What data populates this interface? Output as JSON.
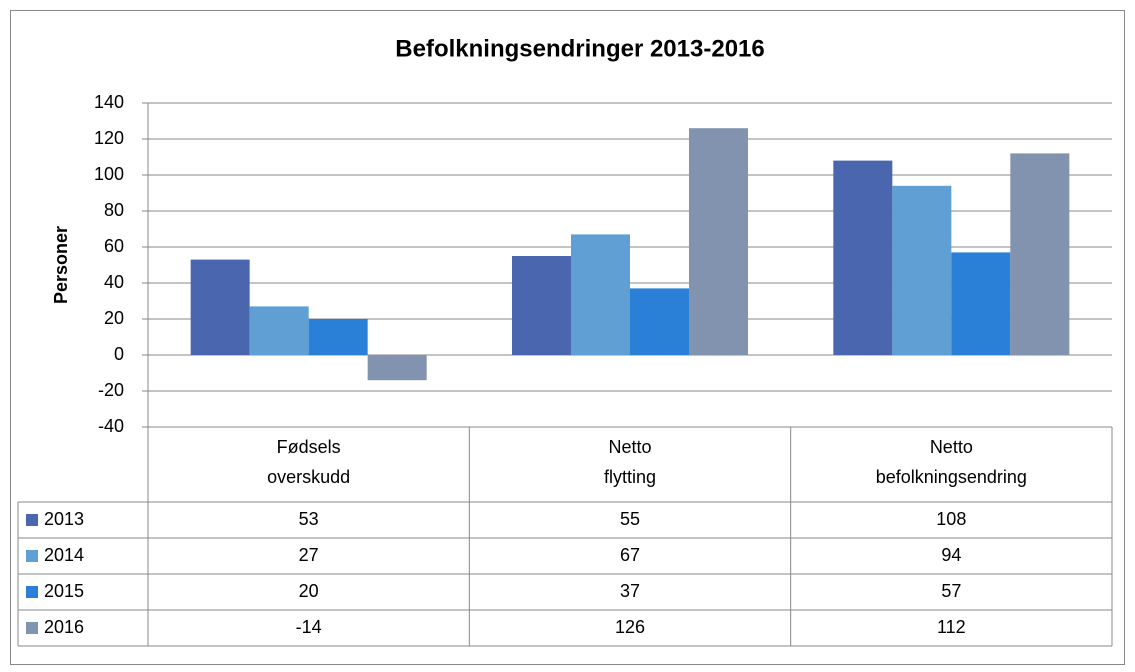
{
  "chart_data": {
    "type": "bar",
    "title": "Befolkningsendringer 2013-2016",
    "y_label": "Personer",
    "categories": [
      "Fødsels\noverskudd",
      "Netto\nflytting",
      "Netto\nbefolkningsendring"
    ],
    "series": [
      {
        "name": "2013",
        "color": "#4a66ae",
        "values": [
          53,
          55,
          108
        ]
      },
      {
        "name": "2014",
        "color": "#5f9fd4",
        "values": [
          27,
          67,
          94
        ]
      },
      {
        "name": "2015",
        "color": "#2a7fd6",
        "values": [
          20,
          37,
          57
        ]
      },
      {
        "name": "2016",
        "color": "#8193ae",
        "values": [
          -14,
          126,
          112
        ]
      }
    ],
    "ylim": [
      -40,
      140
    ],
    "yticks": [
      -40,
      -20,
      0,
      20,
      40,
      60,
      80,
      100,
      120,
      140
    ],
    "grid": true,
    "data_table": true
  }
}
